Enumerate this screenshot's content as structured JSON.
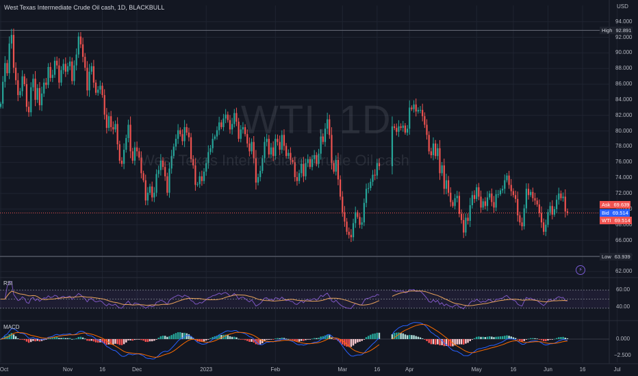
{
  "header": {
    "symbol_line": "West Texas Intermediate Crude Oil cash, 1D, BLACKBULL",
    "currency": "USD"
  },
  "watermark": {
    "ticker": "WTI, 1D",
    "name": "West Texas Intermediate Crude Oil cash"
  },
  "colors": {
    "up": "#26a69a",
    "down": "#ef5350",
    "background": "#131722",
    "grid": "#1f2431",
    "rsi_line": "#7e57c2",
    "rsi_ma": "#e8a35c",
    "macd_line": "#2962ff",
    "signal_line": "#ff6d00",
    "hist_up_strong": "#26a69a",
    "hist_up_weak": "#b2dfdb",
    "hist_down_strong": "#ff5252",
    "hist_down_weak": "#ffcdd2"
  },
  "price_tags": {
    "high": {
      "label": "High",
      "value": "92.891"
    },
    "ask": {
      "label": "Ask",
      "value": "69.639"
    },
    "bid": {
      "label": "Bid",
      "value": "69.514"
    },
    "last": {
      "label": "WTI",
      "value": "69.514"
    },
    "low": {
      "label": "Low",
      "value": "63.939"
    }
  },
  "indicators": {
    "rsi_label": "RSI",
    "macd_label": "MACD",
    "rsi_ticks": [
      "60.00",
      "40.00"
    ],
    "macd_ticks": [
      "0.000",
      "−2.500"
    ]
  },
  "chart_data": {
    "type": "candlestick",
    "price_axis": {
      "ylim": [
        61.5,
        95.2
      ],
      "ticks": [
        "94.000",
        "92.000",
        "90.000",
        "88.000",
        "86.000",
        "84.000",
        "82.000",
        "80.000",
        "78.000",
        "76.000",
        "74.000",
        "72.000",
        "70.000",
        "68.000",
        "66.000",
        "64.000",
        "62.000"
      ],
      "tick_values": [
        94,
        92,
        90,
        88,
        86,
        84,
        82,
        80,
        78,
        76,
        74,
        72,
        70,
        68,
        66,
        64,
        62
      ]
    },
    "x_axis": {
      "ticks": [
        "Oct",
        "Nov",
        "16",
        "Dec",
        "2023",
        "Feb",
        "Mar",
        "16",
        "Apr",
        "May",
        "16",
        "Jun",
        "16",
        "Jul"
      ],
      "tick_bar_index": [
        0,
        31,
        47,
        63,
        95,
        127,
        158,
        174,
        189,
        220,
        237,
        253,
        269,
        285
      ]
    },
    "high": 92.891,
    "low": 63.939,
    "ask": 69.639,
    "bid": 69.514,
    "last": 69.514,
    "closes": [
      83.5,
      86.3,
      88.7,
      87.4,
      91.2,
      92.3,
      88.1,
      86.5,
      84.6,
      85.1,
      87.0,
      86.0,
      83.1,
      82.4,
      85.6,
      86.7,
      84.0,
      85.5,
      83.3,
      84.8,
      86.2,
      85.9,
      88.2,
      86.8,
      87.2,
      89.0,
      88.4,
      86.2,
      87.8,
      88.6,
      87.6,
      88.3,
      88.9,
      86.4,
      88.4,
      89.8,
      92.1,
      91.1,
      89.5,
      88.1,
      85.2,
      87.6,
      88.3,
      86.2,
      84.9,
      85.3,
      85.8,
      84.6,
      82.1,
      80.4,
      81.9,
      80.5,
      80.2,
      80.9,
      78.3,
      76.2,
      75.8,
      77.6,
      79.1,
      80.8,
      77.4,
      76.2,
      77.9,
      77.4,
      76.6,
      74.6,
      73.7,
      71.1,
      72.1,
      72.9,
      71.5,
      72.1,
      74.5,
      75.0,
      76.2,
      75.4,
      74.2,
      72.1,
      75.2,
      76.8,
      78.0,
      79.0,
      80.1,
      79.6,
      78.7,
      80.5,
      79.8,
      79.2,
      76.4,
      75.6,
      73.1,
      73.2,
      74.2,
      73.6,
      74.8,
      75.9,
      77.3,
      77.8,
      79.0,
      79.3,
      80.1,
      81.1,
      80.5,
      81.6,
      82.1,
      81.4,
      80.2,
      80.9,
      82.3,
      81.2,
      79.0,
      80.2,
      80.5,
      79.6,
      78.4,
      77.4,
      78.6,
      76.5,
      73.4,
      74.1,
      74.9,
      76.5,
      78.6,
      79.0,
      77.0,
      77.9,
      76.8,
      79.0,
      78.6,
      77.6,
      79.5,
      78.1,
      76.8,
      77.2,
      76.3,
      76.0,
      74.1,
      73.6,
      74.6,
      75.8,
      74.2,
      75.9,
      76.4,
      75.4,
      76.4,
      76.9,
      75.8,
      77.1,
      79.3,
      78.6,
      80.3,
      81.5,
      79.5,
      75.9,
      74.8,
      76.3,
      73.8,
      71.6,
      69.6,
      68.4,
      67.1,
      66.7,
      66.4,
      68.2,
      69.6,
      69.0,
      68.0,
      68.3,
      70.8,
      72.6,
      72.7,
      73.5,
      74.4,
      74.3,
      75.9,
      75.5,
      null,
      null,
      null,
      null,
      null,
      80.6,
      80.4,
      79.9,
      80.6,
      80.4,
      80.7,
      79.8,
      80.3,
      83.0,
      82.8,
      83.4,
      82.5,
      82.7,
      82.7,
      81.9,
      80.8,
      79.5,
      77.4,
      76.9,
      78.4,
      76.8,
      77.8,
      74.6,
      75.6,
      72.6,
      73.7,
      72.1,
      70.9,
      70.4,
      71.4,
      71.7,
      69.4,
      68.6,
      67.0,
      68.9,
      68.5,
      70.5,
      71.8,
      71.3,
      72.8,
      71.6,
      70.2,
      71.0,
      70.4,
      71.5,
      72.0,
      70.9,
      70.2,
      71.9,
      71.9,
      72.4,
      72.6,
      73.7,
      74.3,
      73.1,
      72.3,
      71.8,
      71.3,
      69.2,
      68.3,
      67.8,
      70.1,
      72.6,
      71.8,
      72.2,
      71.4,
      71.1,
      70.6,
      69.5,
      68.3,
      67.1,
      68.0,
      69.6,
      70.4,
      69.3,
      70.0,
      71.2,
      72.0,
      71.4,
      71.6,
      69.7,
      69.5
    ]
  }
}
